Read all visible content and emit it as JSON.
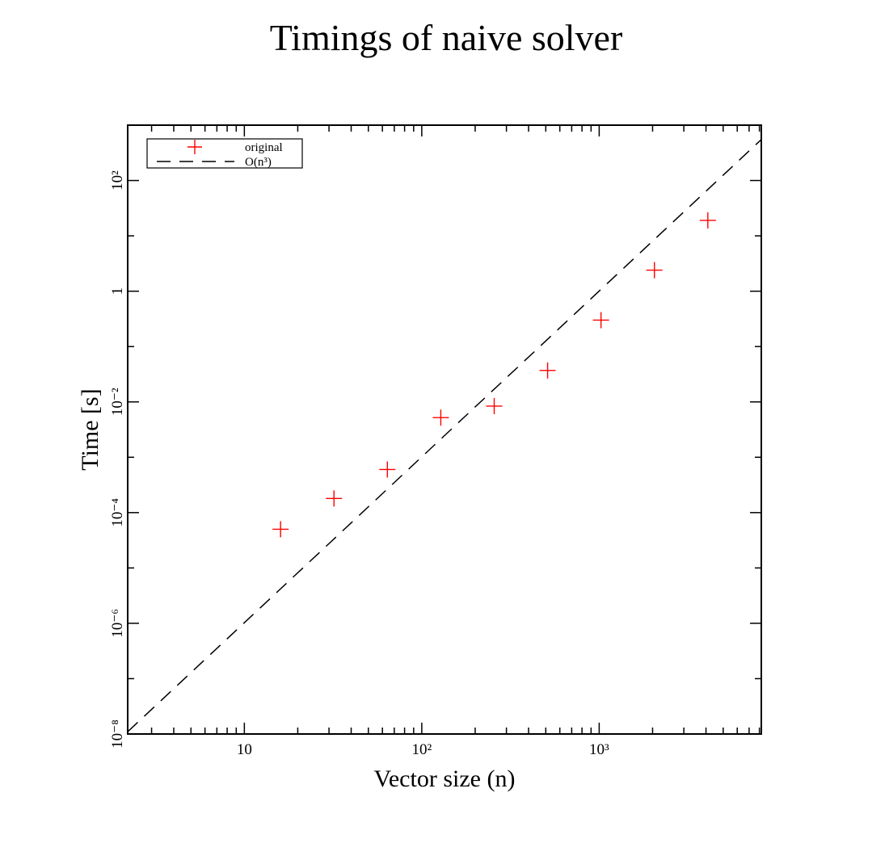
{
  "chart_data": {
    "type": "scatter",
    "title": "Timings of naive solver",
    "xlabel": "Vector size (n)",
    "ylabel": "Time [s]",
    "x_scale": "log",
    "y_scale": "log",
    "xlim": [
      2.2,
      8200
    ],
    "ylim": [
      1e-08,
      1000
    ],
    "x_ticks": [
      {
        "value": 10,
        "label": "10"
      },
      {
        "value": 100,
        "label": "10²"
      },
      {
        "value": 1000,
        "label": "10³"
      }
    ],
    "y_ticks": [
      {
        "value": 1e-08,
        "label": "10⁻⁸"
      },
      {
        "value": 1e-06,
        "label": "10⁻⁶"
      },
      {
        "value": 0.0001,
        "label": "10⁻⁴"
      },
      {
        "value": 0.01,
        "label": "10⁻²"
      },
      {
        "value": 1,
        "label": "1"
      },
      {
        "value": 100,
        "label": "10²"
      }
    ],
    "grid": false,
    "legend_position": "top-left",
    "series": [
      {
        "name": "original",
        "marker": "plus",
        "color": "#ff0000",
        "x": [
          16,
          32,
          64,
          128,
          256,
          512,
          1024,
          2048,
          4096
        ],
        "y": [
          5e-05,
          0.00018,
          0.0006,
          0.0052,
          0.0084,
          0.037,
          0.3,
          2.4,
          19
        ]
      },
      {
        "name": "O(n³)",
        "style": "dashed",
        "color": "#000000",
        "x": [
          2.2,
          8200
        ],
        "y": [
          1.1e-08,
          550
        ]
      }
    ]
  }
}
